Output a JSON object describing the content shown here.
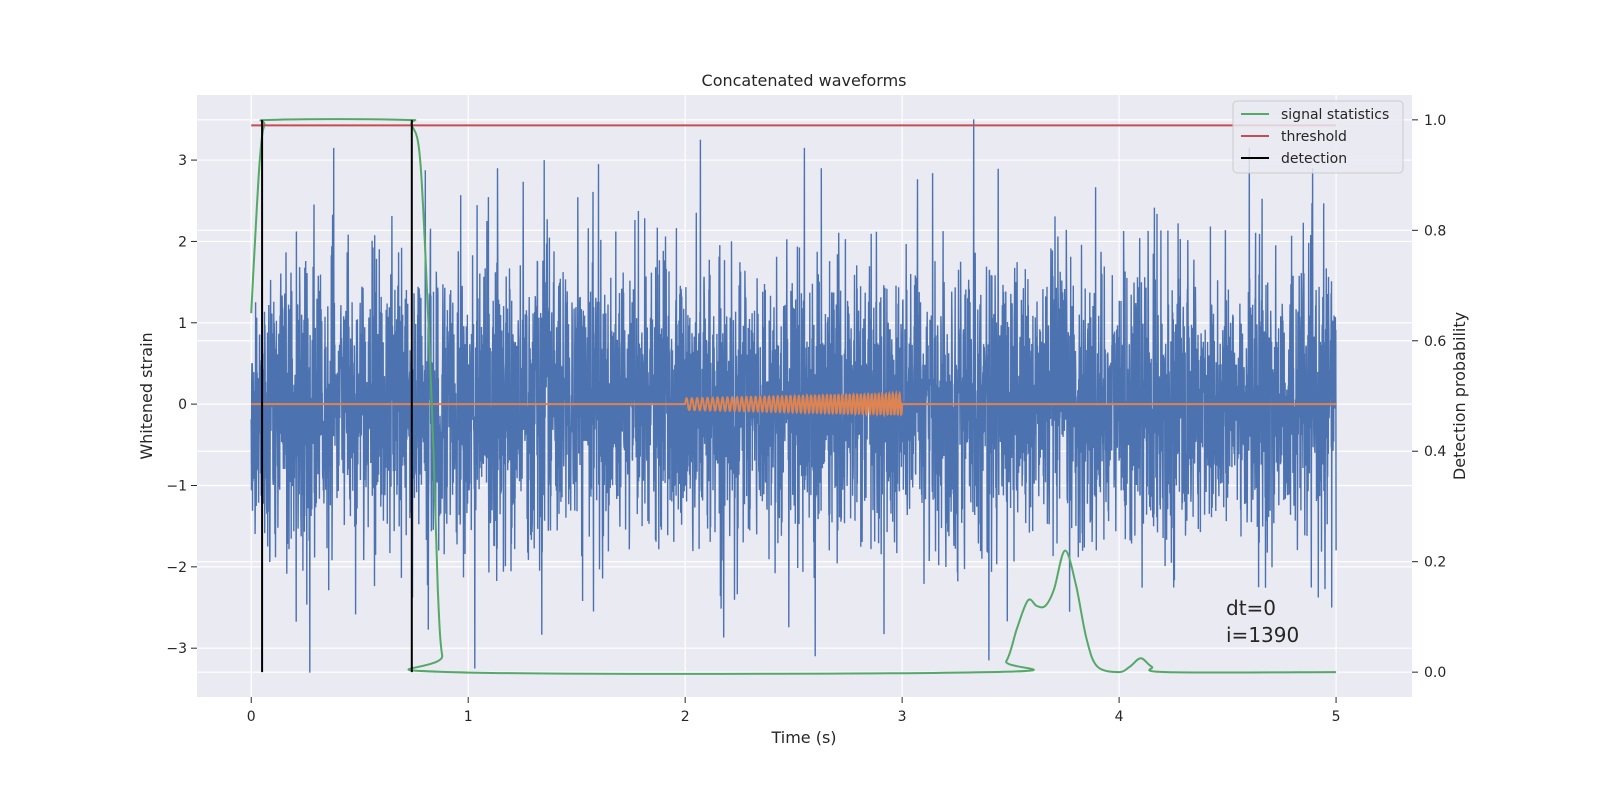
{
  "chart_data": {
    "type": "line",
    "title": "Concatenated waveforms",
    "xlabel": "Time (s)",
    "ylabel": "Whitened strain",
    "y2label": "Detection probability",
    "xlim": [
      -0.25,
      5.35
    ],
    "ylim": [
      -3.6,
      3.8
    ],
    "y2lim": [
      -0.045,
      1.045
    ],
    "x_ticks": [
      0,
      1,
      2,
      3,
      4,
      5
    ],
    "x_tick_labels": [
      "0",
      "1",
      "2",
      "3",
      "4",
      "5"
    ],
    "y_ticks": [
      -3,
      -2,
      -1,
      0,
      1,
      2,
      3
    ],
    "y_tick_labels": [
      "−3",
      "−2",
      "−1",
      "0",
      "1",
      "2",
      "3"
    ],
    "y2_ticks": [
      0,
      0.2,
      0.4,
      0.6,
      0.8,
      1.0
    ],
    "y2_tick_labels": [
      "0.0",
      "0.2",
      "0.4",
      "0.6",
      "0.8",
      "1.0"
    ],
    "grid": true,
    "legend_position": "top-right",
    "background": "#eaeaf2",
    "series": [
      {
        "name": "",
        "axis": "left",
        "color": "#4c72b0",
        "kind": "noise",
        "x_range": [
          0,
          5
        ],
        "amplitude_typical": 2.0,
        "peaks": [
          {
            "x": 0.38,
            "y": 3.15
          },
          {
            "x": 1.35,
            "y": 3.0
          },
          {
            "x": 1.6,
            "y": 2.95
          },
          {
            "x": 2.07,
            "y": 3.25
          },
          {
            "x": 2.55,
            "y": 3.15
          },
          {
            "x": 3.33,
            "y": 3.5
          },
          {
            "x": 4.6,
            "y": 3.15
          },
          {
            "x": 0.27,
            "y": -3.3
          },
          {
            "x": 1.03,
            "y": -3.25
          },
          {
            "x": 2.6,
            "y": -3.1
          },
          {
            "x": 3.4,
            "y": -3.15
          },
          {
            "x": 4.98,
            "y": -2.5
          }
        ]
      },
      {
        "name": "",
        "axis": "left",
        "color": "#dd8452",
        "kind": "chirp",
        "x_range": [
          0,
          5
        ],
        "chirp_range": [
          2.0,
          3.0
        ],
        "amplitude_max": 0.13
      },
      {
        "name": "signal statistics",
        "axis": "right",
        "color": "#55a868",
        "points": [
          [
            0.0,
            0.65
          ],
          [
            0.02,
            0.8
          ],
          [
            0.04,
            0.93
          ],
          [
            0.06,
            0.99
          ],
          [
            0.1,
            1.0
          ],
          [
            0.7,
            1.0
          ],
          [
            0.74,
            0.99
          ],
          [
            0.78,
            0.92
          ],
          [
            0.82,
            0.6
          ],
          [
            0.84,
            0.4
          ],
          [
            0.86,
            0.15
          ],
          [
            0.88,
            0.03
          ],
          [
            0.92,
            0.0
          ],
          [
            3.4,
            0.0
          ],
          [
            3.48,
            0.02
          ],
          [
            3.53,
            0.08
          ],
          [
            3.58,
            0.13
          ],
          [
            3.62,
            0.12
          ],
          [
            3.66,
            0.12
          ],
          [
            3.7,
            0.15
          ],
          [
            3.75,
            0.22
          ],
          [
            3.8,
            0.16
          ],
          [
            3.85,
            0.06
          ],
          [
            3.9,
            0.01
          ],
          [
            4.0,
            0.0
          ],
          [
            4.05,
            0.01
          ],
          [
            4.1,
            0.025
          ],
          [
            4.15,
            0.01
          ],
          [
            4.22,
            0.0
          ],
          [
            5.0,
            0.0
          ]
        ]
      },
      {
        "name": "threshold",
        "axis": "right",
        "color": "#c44e52",
        "points": [
          [
            0.0,
            0.99
          ],
          [
            5.0,
            0.99
          ]
        ]
      },
      {
        "name": "detection",
        "axis": "right",
        "color": "#000000",
        "kind": "vlines",
        "x": [
          0.05,
          0.74
        ],
        "y_range": [
          0.0,
          1.0
        ]
      }
    ],
    "annotations": [
      "dt=0",
      "i=1390"
    ]
  }
}
